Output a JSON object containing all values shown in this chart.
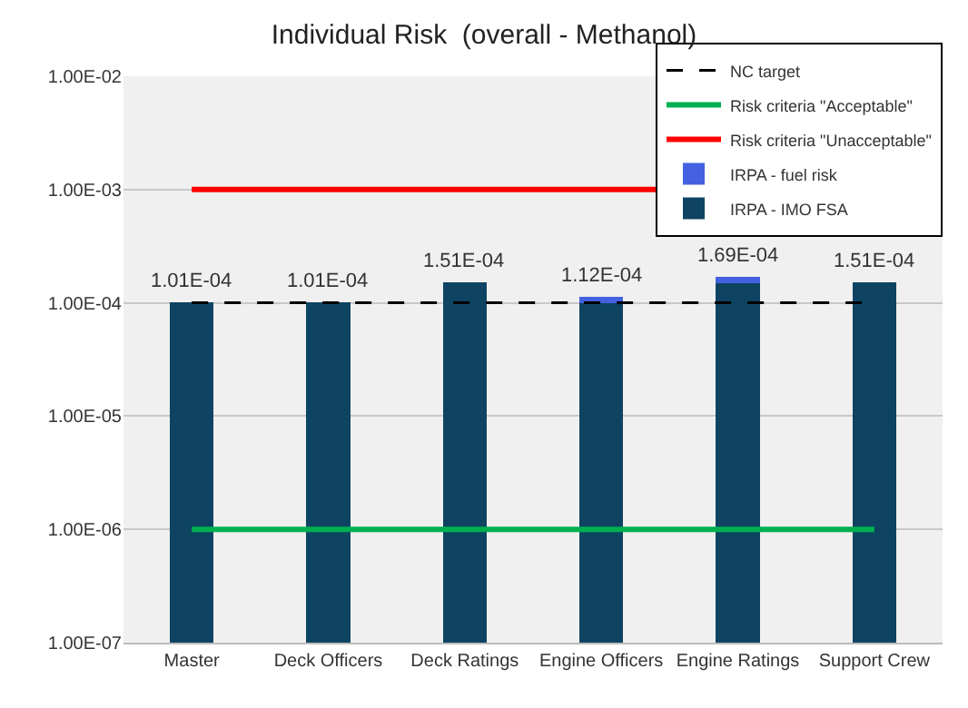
{
  "chart_data": {
    "type": "bar",
    "title": "Individual Risk  (overall - Methanol)",
    "stacked": true,
    "log": "y",
    "categories": [
      "Master",
      "Deck Officers",
      "Deck Ratings",
      "Engine Officers",
      "Engine Ratings",
      "Support Crew"
    ],
    "series": [
      {
        "name": "IRPA - IMO FSA",
        "color": "#0e4462",
        "values": [
          0.000101,
          0.000101,
          0.000151,
          0.0001,
          0.00015,
          0.000151
        ]
      },
      {
        "name": "IRPA - fuel risk",
        "color": "#4361e0",
        "values": [
          null,
          null,
          null,
          1.2e-05,
          1.9e-05,
          null
        ]
      }
    ],
    "totals": [
      "1.01E-04",
      "1.01E-04",
      "1.51E-04",
      "1.12E-04",
      "1.69E-04",
      "1.51E-04"
    ],
    "ylim": [
      1e-07,
      0.01
    ],
    "yticks": [
      {
        "value": 1e-07,
        "label": "1.00E-07"
      },
      {
        "value": 1e-06,
        "label": "1.00E-06"
      },
      {
        "value": 1e-05,
        "label": "1.00E-05"
      },
      {
        "value": 0.0001,
        "label": "1.00E-04"
      },
      {
        "value": 0.001,
        "label": "1.00E-03"
      },
      {
        "value": 0.01,
        "label": "1.00E-02"
      }
    ],
    "ref_lines": [
      {
        "axis": "y",
        "value": 0.001,
        "label": "Risk criteria \"Unacceptable\"",
        "color": "#ff0000",
        "line_style": "solid"
      },
      {
        "axis": "y",
        "value": 1e-06,
        "label": "Risk criteria \"Acceptable\"",
        "color": "#00b050",
        "line_style": "solid"
      },
      {
        "axis": "y",
        "value": 0.0001,
        "label": "NC target",
        "color": "#000000",
        "line_style": "dashed"
      }
    ],
    "grid": "y",
    "legend": "top right"
  }
}
